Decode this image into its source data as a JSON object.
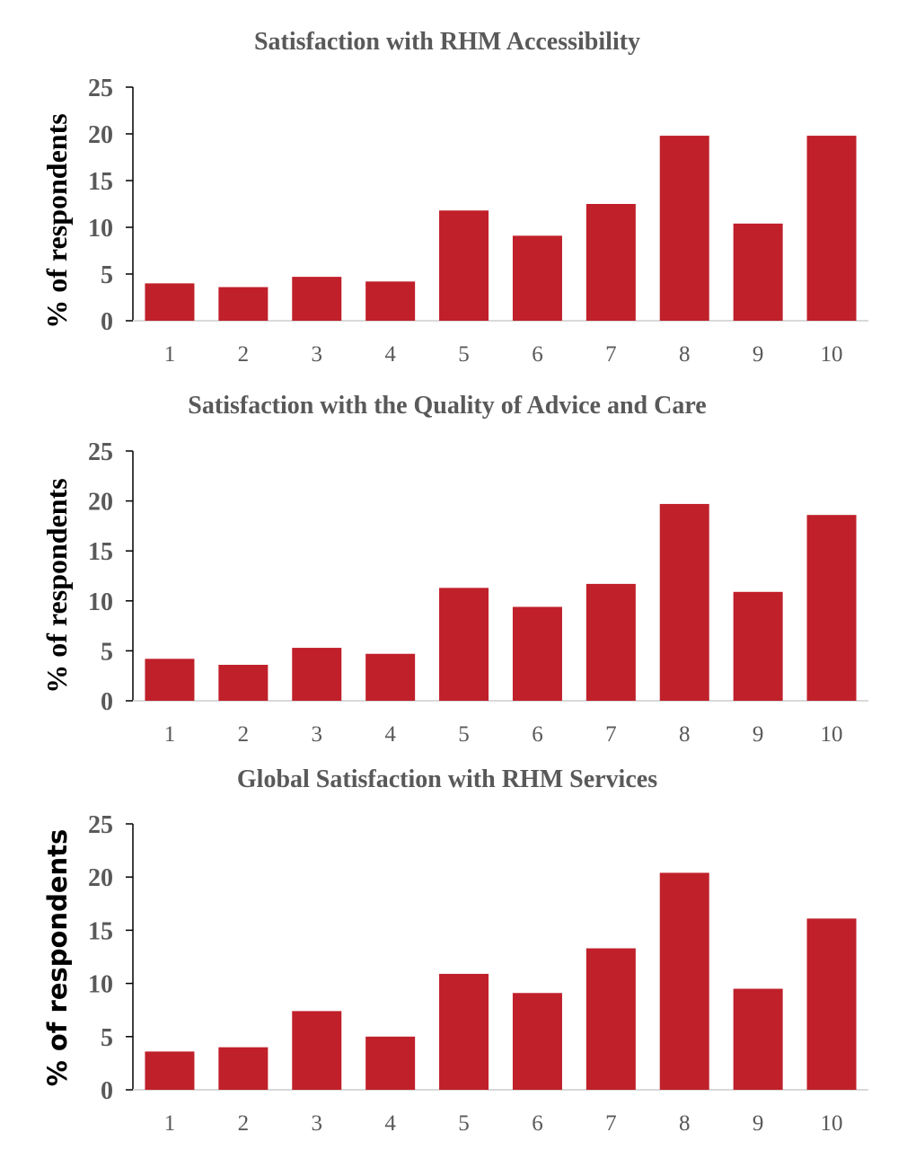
{
  "chart_data": [
    {
      "type": "bar",
      "title": "Satisfaction with RHM Accessibility",
      "ylabel": "% of respondents",
      "xlabel": "",
      "categories": [
        "1",
        "2",
        "3",
        "4",
        "5",
        "6",
        "7",
        "8",
        "9",
        "10"
      ],
      "values": [
        4.0,
        3.6,
        4.7,
        4.2,
        11.8,
        9.1,
        12.5,
        19.8,
        10.4,
        19.8
      ],
      "ylim": [
        0,
        25
      ],
      "yticks": [
        "0",
        "5",
        "10",
        "15",
        "20",
        "25"
      ],
      "bar_color": "#c0202a",
      "grid": false
    },
    {
      "type": "bar",
      "title": "Satisfaction with the Quality of Advice and Care",
      "ylabel": "% of respondents",
      "xlabel": "",
      "categories": [
        "1",
        "2",
        "3",
        "4",
        "5",
        "6",
        "7",
        "8",
        "9",
        "10"
      ],
      "values": [
        4.2,
        3.6,
        5.3,
        4.7,
        11.3,
        9.4,
        11.7,
        19.7,
        10.9,
        18.6
      ],
      "ylim": [
        0,
        25
      ],
      "yticks": [
        "0",
        "5",
        "10",
        "15",
        "20",
        "25"
      ],
      "bar_color": "#c0202a",
      "grid": false
    },
    {
      "type": "bar",
      "title": "Global Satisfaction with RHM Services",
      "ylabel": "% of respondents",
      "xlabel": "",
      "categories": [
        "1",
        "2",
        "3",
        "4",
        "5",
        "6",
        "7",
        "8",
        "9",
        "10"
      ],
      "values": [
        3.6,
        4.0,
        7.4,
        5.0,
        10.9,
        9.1,
        13.3,
        20.4,
        9.5,
        16.1
      ],
      "ylim": [
        0,
        25
      ],
      "yticks": [
        "0",
        "5",
        "10",
        "15",
        "20",
        "25"
      ],
      "bar_color": "#c0202a",
      "grid": false
    }
  ]
}
